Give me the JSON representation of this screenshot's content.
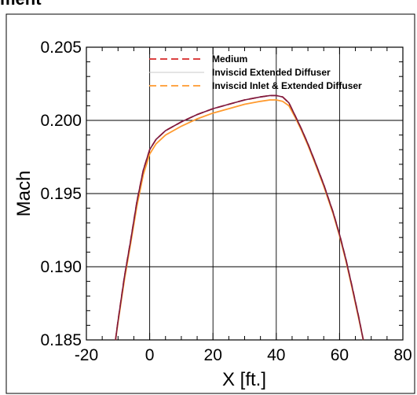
{
  "clipped_title_fragment": "ment",
  "chart_data": {
    "type": "line",
    "title": "",
    "xlabel": "X [ft.]",
    "ylabel": "Mach",
    "xlim": [
      -20,
      80
    ],
    "ylim": [
      0.185,
      0.205
    ],
    "x_ticks": [
      -20,
      0,
      20,
      40,
      60,
      80
    ],
    "x_tick_labels": [
      "-20",
      "0",
      "20",
      "40",
      "60",
      "80"
    ],
    "y_ticks": [
      0.185,
      0.19,
      0.195,
      0.2,
      0.205
    ],
    "y_tick_labels": [
      "0.185",
      "0.190",
      "0.195",
      "0.200",
      "0.205"
    ],
    "grid": true,
    "legend_position": "top-right",
    "series": [
      {
        "name": "Medium",
        "color": "#d62728",
        "style": "dashed",
        "x": [
          -10.8,
          -10,
          -8,
          -6,
          -4,
          -2,
          0,
          2,
          5,
          10,
          15,
          20,
          25,
          30,
          35,
          38,
          40,
          42,
          44,
          46,
          48,
          50,
          52,
          55,
          58,
          60,
          62,
          64,
          66,
          67.5
        ],
        "y": [
          0.185,
          0.1863,
          0.1893,
          0.1918,
          0.1945,
          0.1966,
          0.198,
          0.1987,
          0.1993,
          0.1999,
          0.2004,
          0.2008,
          0.2011,
          0.2014,
          0.2016,
          0.2017,
          0.2017,
          0.2016,
          0.2012,
          0.2003,
          0.1994,
          0.1984,
          0.1973,
          0.1956,
          0.1937,
          0.1922,
          0.1905,
          0.1886,
          0.1866,
          0.185
        ]
      },
      {
        "name": "Inviscid Extended Diffuser",
        "color": "#7b1a40",
        "style": "solid",
        "x": [
          -10.8,
          -10,
          -8,
          -6,
          -4,
          -2,
          0,
          2,
          5,
          10,
          15,
          20,
          25,
          30,
          35,
          38,
          40,
          42,
          44,
          46,
          48,
          50,
          52,
          55,
          58,
          60,
          62,
          64,
          66,
          67.5
        ],
        "y": [
          0.185,
          0.1863,
          0.1893,
          0.1918,
          0.1945,
          0.1966,
          0.198,
          0.1987,
          0.1993,
          0.1999,
          0.2004,
          0.2008,
          0.2011,
          0.2014,
          0.2016,
          0.2017,
          0.2017,
          0.2016,
          0.2012,
          0.2003,
          0.1994,
          0.1984,
          0.1973,
          0.1956,
          0.1937,
          0.1922,
          0.1905,
          0.1886,
          0.1866,
          0.185
        ]
      },
      {
        "name": "Inviscid Inlet & Extended Diffuser",
        "color": "#ff9a2e",
        "style": "dashed",
        "x": [
          -10.8,
          -10,
          -8,
          -6,
          -4,
          -2,
          0,
          2,
          5,
          10,
          15,
          20,
          25,
          30,
          35,
          38,
          40,
          42,
          44,
          46,
          48,
          50,
          52,
          55,
          58,
          60,
          62,
          64,
          66,
          67.5
        ],
        "y": [
          0.185,
          0.1862,
          0.1891,
          0.1916,
          0.1942,
          0.1963,
          0.1977,
          0.1984,
          0.199,
          0.1996,
          0.2001,
          0.2005,
          0.2008,
          0.2011,
          0.2013,
          0.2014,
          0.2014,
          0.2013,
          0.201,
          0.2002,
          0.1993,
          0.1983,
          0.1972,
          0.1955,
          0.1936,
          0.1921,
          0.1904,
          0.1885,
          0.1865,
          0.185
        ]
      }
    ]
  }
}
